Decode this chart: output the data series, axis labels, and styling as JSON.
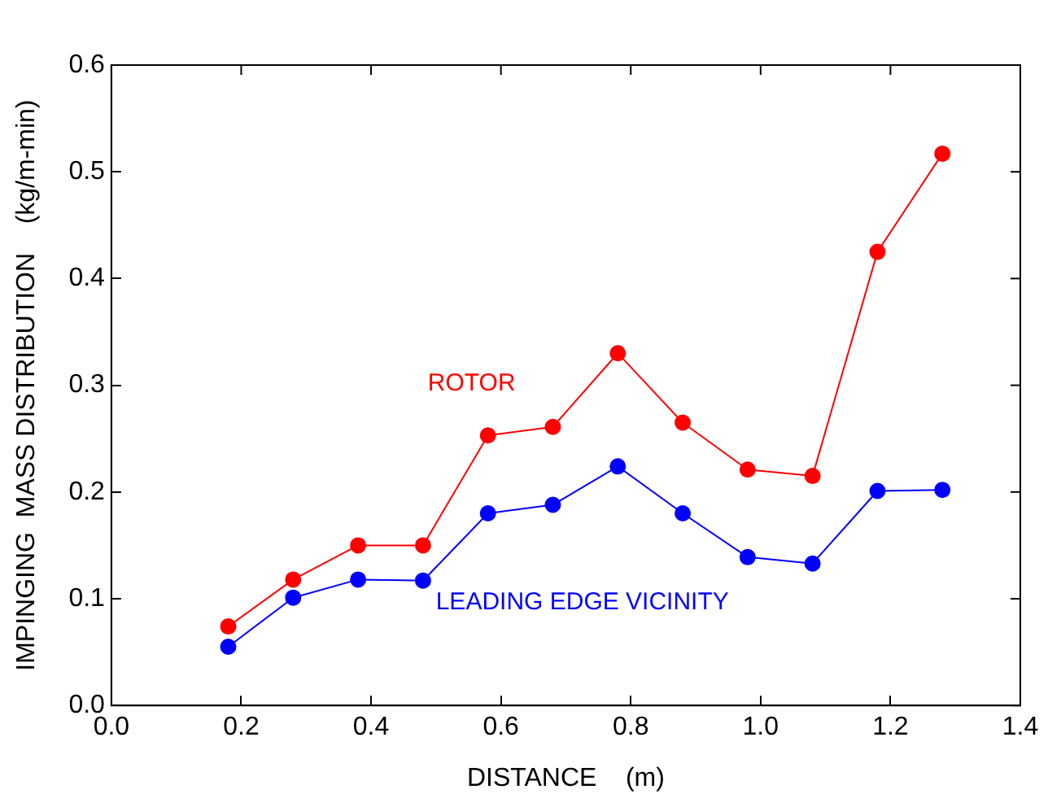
{
  "chart_data": {
    "type": "line",
    "xlabel": "DISTANCE    (m)",
    "ylabel": "IMPINGING  MASS DISTRIBUTION    (kg/m-min)",
    "x": [
      0.18,
      0.28,
      0.38,
      0.48,
      0.58,
      0.68,
      0.78,
      0.88,
      0.98,
      1.08,
      1.18,
      1.28
    ],
    "series": [
      {
        "name": "ROTOR",
        "color": "#ff0000",
        "values": [
          0.074,
          0.118,
          0.15,
          0.15,
          0.253,
          0.261,
          0.33,
          0.265,
          0.221,
          0.215,
          0.425,
          0.517
        ]
      },
      {
        "name": "LEADING EDGE VICINITY",
        "color": "#0000ff",
        "values": [
          0.055,
          0.101,
          0.118,
          0.117,
          0.18,
          0.188,
          0.224,
          0.18,
          0.139,
          0.133,
          0.201,
          0.202
        ]
      }
    ],
    "xlim": [
      0,
      1.4
    ],
    "xticks": [
      {
        "value": 0,
        "label": "0.0"
      },
      0.2,
      0.4,
      0.6,
      0.8,
      {
        "value": 1,
        "label": "1.0"
      },
      1.2,
      1.4
    ],
    "ylim": [
      0,
      0.6
    ],
    "yticks": [
      {
        "value": 0,
        "label": "0.0"
      },
      0.1,
      0.2,
      0.3,
      0.4,
      0.5,
      0.6
    ],
    "grid": false,
    "legend": false,
    "marker": "circle",
    "line_style": "solid"
  }
}
